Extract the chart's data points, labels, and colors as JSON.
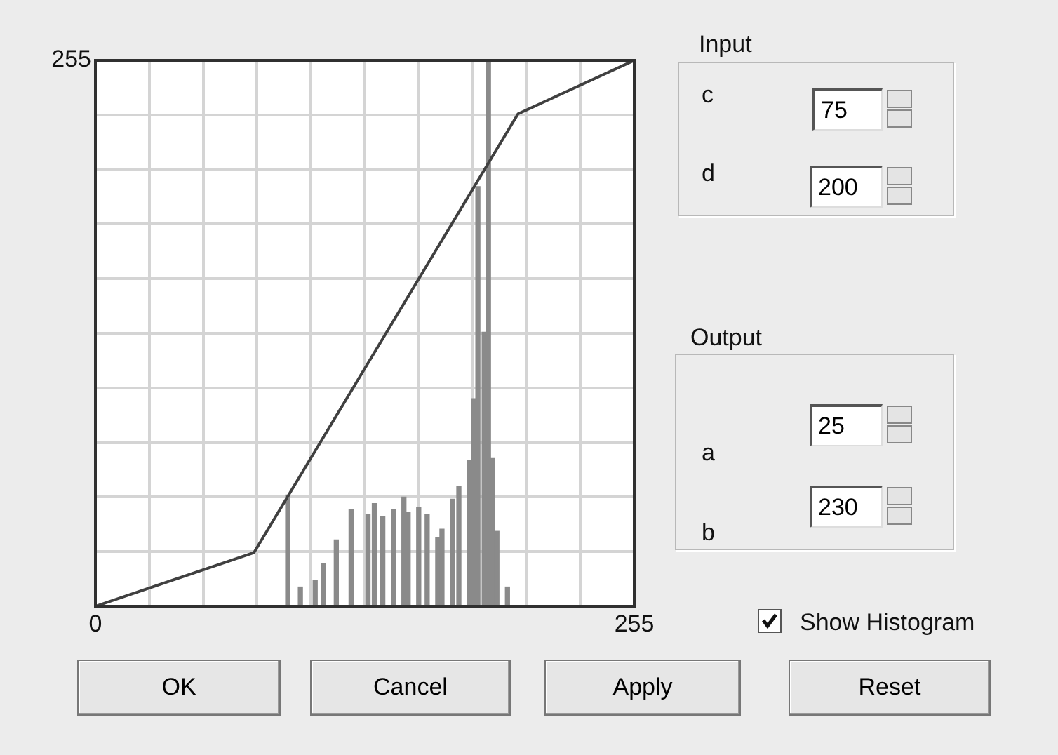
{
  "chart_data": {
    "type": "line",
    "series": [
      {
        "type": "bar",
        "x": [
          91,
          97,
          104,
          108,
          114,
          121,
          129,
          132,
          136,
          141,
          146,
          148,
          153,
          157,
          162,
          164,
          169,
          172,
          177,
          179,
          181,
          184,
          186,
          188,
          190,
          195
        ],
        "values": [
          52,
          9,
          12,
          20,
          31,
          45,
          43,
          48,
          42,
          45,
          51,
          44,
          46,
          43,
          32,
          36,
          50,
          56,
          68,
          97,
          196,
          128,
          255,
          69,
          35,
          9
        ],
        "color": "#8a8a8a"
      },
      {
        "x": [
          0,
          75,
          200,
          255
        ],
        "values": [
          0,
          25,
          230,
          255
        ],
        "color": "#404040"
      }
    ],
    "xlim": [
      0,
      255
    ],
    "ylim": [
      0,
      255
    ],
    "xticks": [
      {
        "value": 0,
        "label": "0"
      },
      {
        "value": 25.5,
        "label": null
      },
      {
        "value": 51,
        "label": null
      },
      {
        "value": 76.5,
        "label": null
      },
      {
        "value": 102,
        "label": null
      },
      {
        "value": 127.5,
        "label": null
      },
      {
        "value": 153,
        "label": null
      },
      {
        "value": 178.5,
        "label": null
      },
      {
        "value": 204,
        "label": null
      },
      {
        "value": 229.5,
        "label": null
      },
      255
    ],
    "yticks": [
      {
        "value": 0,
        "label": null
      },
      {
        "value": 25.5,
        "label": null
      },
      {
        "value": 51,
        "label": null
      },
      {
        "value": 76.5,
        "label": null
      },
      {
        "value": 102,
        "label": null
      },
      {
        "value": 127.5,
        "label": null
      },
      {
        "value": 153,
        "label": null
      },
      {
        "value": 178.5,
        "label": null
      },
      {
        "value": 204,
        "label": null
      },
      {
        "value": 229.5,
        "label": null
      },
      255
    ],
    "grid": true,
    "annotations": [
      "Input",
      "c",
      "75",
      "d",
      "200",
      "Output",
      "a",
      "25",
      "b",
      "230",
      "Show Histogram",
      "OK",
      "Cancel",
      "Apply",
      "Reset"
    ]
  }
}
